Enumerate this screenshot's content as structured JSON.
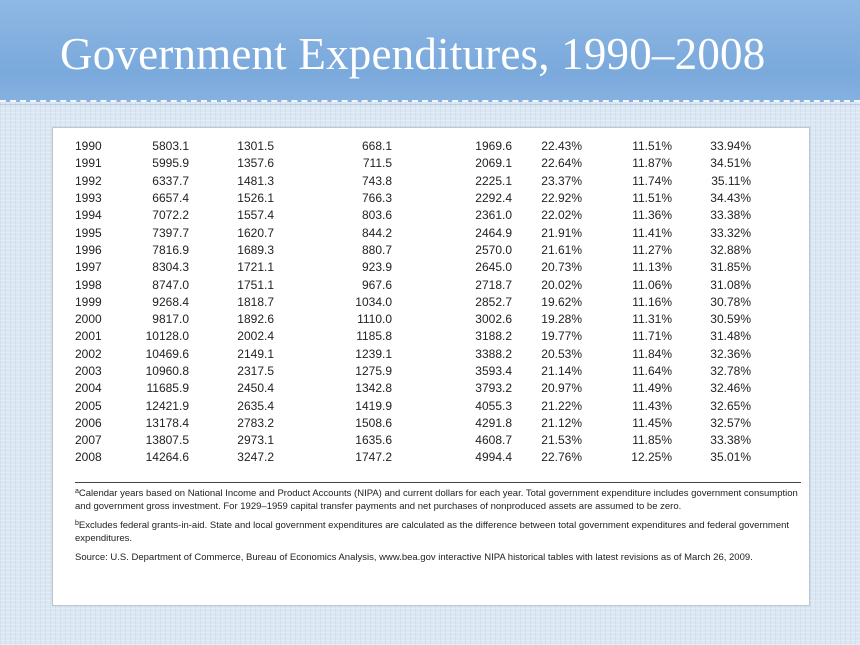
{
  "slide": {
    "title": "Government Expenditures, 1990–2008"
  },
  "table": {
    "rows": [
      [
        "1990",
        "5803.1",
        "1301.5",
        "668.1",
        "1969.6",
        "22.43%",
        "11.51%",
        "33.94%"
      ],
      [
        "1991",
        "5995.9",
        "1357.6",
        "711.5",
        "2069.1",
        "22.64%",
        "11.87%",
        "34.51%"
      ],
      [
        "1992",
        "6337.7",
        "1481.3",
        "743.8",
        "2225.1",
        "23.37%",
        "11.74%",
        "35.11%"
      ],
      [
        "1993",
        "6657.4",
        "1526.1",
        "766.3",
        "2292.4",
        "22.92%",
        "11.51%",
        "34.43%"
      ],
      [
        "1994",
        "7072.2",
        "1557.4",
        "803.6",
        "2361.0",
        "22.02%",
        "11.36%",
        "33.38%"
      ],
      [
        "1995",
        "7397.7",
        "1620.7",
        "844.2",
        "2464.9",
        "21.91%",
        "11.41%",
        "33.32%"
      ],
      [
        "1996",
        "7816.9",
        "1689.3",
        "880.7",
        "2570.0",
        "21.61%",
        "11.27%",
        "32.88%"
      ],
      [
        "1997",
        "8304.3",
        "1721.1",
        "923.9",
        "2645.0",
        "20.73%",
        "11.13%",
        "31.85%"
      ],
      [
        "1998",
        "8747.0",
        "1751.1",
        "967.6",
        "2718.7",
        "20.02%",
        "11.06%",
        "31.08%"
      ],
      [
        "1999",
        "9268.4",
        "1818.7",
        "1034.0",
        "2852.7",
        "19.62%",
        "11.16%",
        "30.78%"
      ],
      [
        "2000",
        "9817.0",
        "1892.6",
        "1110.0",
        "3002.6",
        "19.28%",
        "11.31%",
        "30.59%"
      ],
      [
        "2001",
        "10128.0",
        "2002.4",
        "1185.8",
        "3188.2",
        "19.77%",
        "11.71%",
        "31.48%"
      ],
      [
        "2002",
        "10469.6",
        "2149.1",
        "1239.1",
        "3388.2",
        "20.53%",
        "11.84%",
        "32.36%"
      ],
      [
        "2003",
        "10960.8",
        "2317.5",
        "1275.9",
        "3593.4",
        "21.14%",
        "11.64%",
        "32.78%"
      ],
      [
        "2004",
        "11685.9",
        "2450.4",
        "1342.8",
        "3793.2",
        "20.97%",
        "11.49%",
        "32.46%"
      ],
      [
        "2005",
        "12421.9",
        "2635.4",
        "1419.9",
        "4055.3",
        "21.22%",
        "11.43%",
        "32.65%"
      ],
      [
        "2006",
        "13178.4",
        "2783.2",
        "1508.6",
        "4291.8",
        "21.12%",
        "11.45%",
        "32.57%"
      ],
      [
        "2007",
        "13807.5",
        "2973.1",
        "1635.6",
        "4608.7",
        "21.53%",
        "11.85%",
        "33.38%"
      ],
      [
        "2008",
        "14264.6",
        "3247.2",
        "1747.2",
        "4994.4",
        "22.76%",
        "12.25%",
        "35.01%"
      ]
    ]
  },
  "notes": {
    "a_mark": "a",
    "a_text": "Calendar years based on National Income and Product Accounts (NIPA) and current dollars for each year. Total government expenditure includes government consumption and government gross investment. For 1929–1959 capital transfer payments and net purchases of nonproduced assets are assumed to be zero.",
    "b_mark": "b",
    "b_text": "Excludes federal grants-in-aid. State and local government expenditures are calculated as the difference between total government expenditures and federal government expenditures.",
    "source": "Source: U.S. Department of Commerce, Bureau of Economics Analysis, www.bea.gov interactive NIPA historical tables with latest revisions as of March 26, 2009."
  }
}
